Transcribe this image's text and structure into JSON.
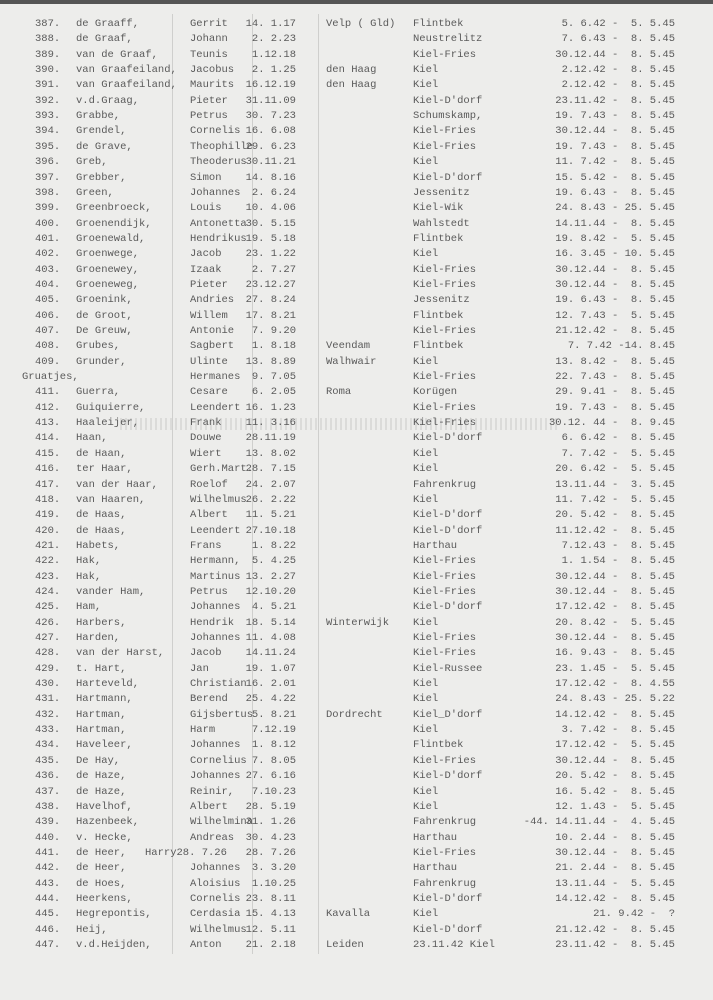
{
  "columns": [
    "no",
    "surname",
    "first_name",
    "birth_date",
    "birth_place",
    "camp",
    "period"
  ],
  "rows": [
    {
      "no": "387.",
      "surname": "de Graaff,",
      "first_name": "Gerrit",
      "birth_date": "14. 1.17",
      "birth_place": "Velp ( Gld)",
      "camp": "Flintbek",
      "period": "5. 6.42 -  5. 5.45"
    },
    {
      "no": "388.",
      "surname": "de Graaf,",
      "first_name": "Johann",
      "birth_date": "2. 2.23",
      "birth_place": "",
      "camp": "Neustrelitz",
      "period": "7. 6.43 -  8. 5.45"
    },
    {
      "no": "389.",
      "surname": "van de Graaf,",
      "first_name": "Teunis",
      "birth_date": "1.12.18",
      "birth_place": "",
      "camp": "Kiel-Fries",
      "period": "30.12.44 -  8. 5.45"
    },
    {
      "no": "390.",
      "surname": "van Graafeiland,",
      "first_name": "Jacobus",
      "birth_date": "2. 1.25",
      "birth_place": "den Haag",
      "camp": "Kiel",
      "period": "2.12.42 -  8. 5.45"
    },
    {
      "no": "391.",
      "surname": "van Graafeiland,",
      "first_name": "Maurits",
      "birth_date": "16.12.19",
      "birth_place": "den Haag",
      "camp": "Kiel",
      "period": "2.12.42 -  8. 5.45"
    },
    {
      "no": "392.",
      "surname": "v.d.Graag,",
      "first_name": "Pieter",
      "birth_date": "31.11.09",
      "birth_place": "",
      "camp": "Kiel-D'dorf",
      "period": "23.11.42 -  8. 5.45"
    },
    {
      "no": "393.",
      "surname": "Grabbe,",
      "first_name": "Petrus",
      "birth_date": "30. 7.23",
      "birth_place": "",
      "camp": "Schumskamp,",
      "period": "19. 7.43 -  8. 5.45"
    },
    {
      "no": "394.",
      "surname": "Grendel,",
      "first_name": "Cornelis",
      "birth_date": "16. 6.08",
      "birth_place": "",
      "camp": "Kiel-Fries",
      "period": "30.12.44 -  8. 5.45"
    },
    {
      "no": "395.",
      "surname": "de Grave,",
      "first_name": "Theophille",
      "birth_date": "29. 6.23",
      "birth_place": "",
      "camp": "Kiel-Fries",
      "period": "19. 7.43 -  8. 5.45"
    },
    {
      "no": "396.",
      "surname": "Greb,",
      "first_name": "Theoderus",
      "birth_date": "30.11.21",
      "birth_place": "",
      "camp": "Kiel",
      "period": "11. 7.42 -  8. 5.45"
    },
    {
      "no": "397.",
      "surname": "Grebber,",
      "first_name": "Simon",
      "birth_date": "14. 8.16",
      "birth_place": "",
      "camp": "Kiel-D'dorf",
      "period": "15. 5.42 -  8. 5.45"
    },
    {
      "no": "398.",
      "surname": "Green,",
      "first_name": "Johannes",
      "birth_date": "2. 6.24",
      "birth_place": "",
      "camp": "Jessenitz",
      "period": "19. 6.43 -  8. 5.45"
    },
    {
      "no": "399.",
      "surname": "Greenbroeck,",
      "first_name": "Louis",
      "birth_date": "10. 4.06",
      "birth_place": "",
      "camp": "Kiel-Wik",
      "period": "24. 8.43 - 25. 5.45"
    },
    {
      "no": "400.",
      "surname": "Groenendijk,",
      "first_name": "Antonetta",
      "birth_date": "30. 5.15",
      "birth_place": "",
      "camp": "Wahlstedt",
      "period": "14.11.44 -  8. 5.45"
    },
    {
      "no": "401.",
      "surname": "Groenewald,",
      "first_name": "Hendrikus",
      "birth_date": "19. 5.18",
      "birth_place": "",
      "camp": "Flintbek",
      "period": "19. 8.42 -  5. 5.45"
    },
    {
      "no": "402.",
      "surname": "Groenwege,",
      "first_name": "Jacob",
      "birth_date": "23. 1.22",
      "birth_place": "",
      "camp": "Kiel",
      "period": "16. 3.45 - 10. 5.45"
    },
    {
      "no": "403.",
      "surname": "Groenewey,",
      "first_name": "Izaak",
      "birth_date": "2. 7.27",
      "birth_place": "",
      "camp": "Kiel-Fries",
      "period": "30.12.44 -  8. 5.45"
    },
    {
      "no": "404.",
      "surname": "Groeneweg,",
      "first_name": "Pieter",
      "birth_date": "23.12.27",
      "birth_place": "",
      "camp": "Kiel-Fries",
      "period": "30.12.44 -  8. 5.45"
    },
    {
      "no": "405.",
      "surname": "Groenink,",
      "first_name": "Andries",
      "birth_date": "27. 8.24",
      "birth_place": "",
      "camp": "Jessenitz",
      "period": "19. 6.43 -  8. 5.45"
    },
    {
      "no": "406.",
      "surname": "de Groot,",
      "first_name": "Willem",
      "birth_date": "17. 8.21",
      "birth_place": "",
      "camp": "Flintbek",
      "period": "12. 7.43 -  5. 5.45"
    },
    {
      "no": "407.",
      "surname": "De Greuw,",
      "first_name": "Antonie",
      "birth_date": "7. 9.20",
      "birth_place": "",
      "camp": "Kiel-Fries",
      "period": "21.12.42 -  8. 5.45"
    },
    {
      "no": "408.",
      "surname": "Grubes,",
      "first_name": "Sagbert",
      "birth_date": "1. 8.18",
      "birth_place": "Veendam",
      "camp": "Flintbek",
      "period": "7. 7.42 -14. 8.45"
    },
    {
      "no": "409.",
      "surname": "Grunder,",
      "first_name": "Ulinte",
      "birth_date": "13. 8.89",
      "birth_place": "Walhwair",
      "camp": "Kiel",
      "period": "13. 8.42 -  8. 5.45"
    },
    {
      "no": "",
      "surname": "Gruatjes,",
      "first_name": "Hermanes",
      "birth_date": "9. 7.05",
      "birth_place": "",
      "camp": "Kiel-Fries",
      "period": "22. 7.43 -  8. 5.45"
    },
    {
      "no": "411.",
      "surname": "Guerra,",
      "first_name": "Cesare",
      "birth_date": "6. 2.05",
      "birth_place": "Roma",
      "camp": "Korügen",
      "period": "29. 9.41 -  8. 5.45"
    },
    {
      "no": "412.",
      "surname": "Guiquierre,",
      "first_name": "Leendert",
      "birth_date": "16. 1.23",
      "birth_place": "",
      "camp": "Kiel-Fries",
      "period": "19. 7.43 -  8. 5.45"
    },
    {
      "no": "413.",
      "surname": "Haaleijer,",
      "first_name": "Frank",
      "birth_date": "11. 3.16",
      "birth_place": "",
      "camp": "Kiel-Fries",
      "period": "30.12. 44 -  8. 9.45"
    },
    {
      "no": "414.",
      "surname": "Haan,",
      "first_name": "Douwe",
      "birth_date": "28.11.19",
      "birth_place": "",
      "camp": "Kiel-D'dorf",
      "period": "6. 6.42 -  8. 5.45"
    },
    {
      "no": "415.",
      "surname": "de Haan,",
      "first_name": "Wiert",
      "birth_date": "13. 8.02",
      "birth_place": "",
      "camp": "Kiel",
      "period": "7. 7.42 -  5. 5.45"
    },
    {
      "no": "416.",
      "surname": "ter Haar,",
      "first_name": "Gerh.Mart.",
      "birth_date": "28. 7.15",
      "birth_place": "",
      "camp": "Kiel",
      "period": "20. 6.42 -  5. 5.45"
    },
    {
      "no": "417.",
      "surname": "van der Haar,",
      "first_name": "Roelof",
      "birth_date": "24. 2.07",
      "birth_place": "",
      "camp": "Fahrenkrug",
      "period": "13.11.44 -  3. 5.45"
    },
    {
      "no": "418.",
      "surname": "van Haaren,",
      "first_name": "Wilhelmus",
      "birth_date": "26. 2.22",
      "birth_place": "",
      "camp": "Kiel",
      "period": "11. 7.42 -  5. 5.45"
    },
    {
      "no": "419.",
      "surname": "de Haas,",
      "first_name": "Albert",
      "birth_date": "11. 5.21",
      "birth_place": "",
      "camp": "Kiel-D'dorf",
      "period": "20. 5.42 -  8. 5.45"
    },
    {
      "no": "420.",
      "surname": "de Haas,",
      "first_name": "Leendert",
      "birth_date": "27.10.18",
      "birth_place": "",
      "camp": "Kiel-D'dorf",
      "period": "11.12.42 -  8. 5.45"
    },
    {
      "no": "421.",
      "surname": "Habets,",
      "first_name": "Frans",
      "birth_date": "1. 8.22",
      "birth_place": "",
      "camp": "Harthau",
      "period": "7.12.43 -  8. 5.45"
    },
    {
      "no": "422.",
      "surname": "Hak,",
      "first_name": "Hermann,",
      "birth_date": "5. 4.25",
      "birth_place": "",
      "camp": "Kiel-Fries",
      "period": "1. 1.54 -  8. 5.45"
    },
    {
      "no": "423.",
      "surname": "Hak,",
      "first_name": "Martinus",
      "birth_date": "13. 2.27",
      "birth_place": "",
      "camp": "Kiel-Fries",
      "period": "30.12.44 -  8. 5.45"
    },
    {
      "no": "424.",
      "surname": "vander Ham,",
      "first_name": "Petrus",
      "birth_date": "12.10.20",
      "birth_place": "",
      "camp": "Kiel-Fries",
      "period": "30.12.44 -  8. 5.45"
    },
    {
      "no": "425.",
      "surname": "Ham,",
      "first_name": "Johannes",
      "birth_date": "4. 5.21",
      "birth_place": "",
      "camp": "Kiel-D'dorf",
      "period": "17.12.42 -  8. 5.45"
    },
    {
      "no": "426.",
      "surname": "Harbers,",
      "first_name": "Hendrik",
      "birth_date": "18. 5.14",
      "birth_place": "Winterwijk",
      "camp": "Kiel",
      "period": "20. 8.42 -  5. 5.45"
    },
    {
      "no": "427.",
      "surname": "Harden,",
      "first_name": "Johannes",
      "birth_date": "11. 4.08",
      "birth_place": "",
      "camp": "Kiel-Fries",
      "period": "30.12.44 -  8. 5.45"
    },
    {
      "no": "428.",
      "surname": "van der Harst,",
      "first_name": "Jacob",
      "birth_date": "14.11.24",
      "birth_place": "",
      "camp": "Kiel-Fries",
      "period": "16. 9.43 -  8. 5.45"
    },
    {
      "no": "429.",
      "surname": "t. Hart,",
      "first_name": "Jan",
      "birth_date": "19. 1.07",
      "birth_place": "",
      "camp": "Kiel-Russee",
      "period": "23. 1.45 -  5. 5.45"
    },
    {
      "no": "430.",
      "surname": "Harteveld,",
      "first_name": "Christian",
      "birth_date": "16. 2.01",
      "birth_place": "",
      "camp": "Kiel",
      "period": "17.12.42 -  8. 4.55"
    },
    {
      "no": "431.",
      "surname": "Hartmann,",
      "first_name": "Berend",
      "birth_date": "25. 4.22",
      "birth_place": "",
      "camp": "Kiel",
      "period": "24. 8.43 - 25. 5.22"
    },
    {
      "no": "432.",
      "surname": "Hartman,",
      "first_name": "Gijsbertus",
      "birth_date": "5. 8.21",
      "birth_place": "Dordrecht",
      "camp": "Kiel_D'dorf",
      "period": "14.12.42 -  8. 5.45"
    },
    {
      "no": "433.",
      "surname": "Hartman,",
      "first_name": "Harm",
      "birth_date": "7.12.19",
      "birth_place": "",
      "camp": "Kiel",
      "period": "3. 7.42 -  8. 5.45"
    },
    {
      "no": "434.",
      "surname": "Haveleer,",
      "first_name": "Johannes",
      "birth_date": "1. 8.12",
      "birth_place": "",
      "camp": "Flintbek",
      "period": "17.12.42 -  5. 5.45"
    },
    {
      "no": "435.",
      "surname": "De Hay,",
      "first_name": "Cornelius",
      "birth_date": "7. 8.05",
      "birth_place": "",
      "camp": "Kiel-Fries",
      "period": "30.12.44 -  8. 5.45"
    },
    {
      "no": "436.",
      "surname": "de Haze,",
      "first_name": "Johannes",
      "birth_date": "27. 6.16",
      "birth_place": "",
      "camp": "Kiel-D'dorf",
      "period": "20. 5.42 -  8. 5.45"
    },
    {
      "no": "437.",
      "surname": "de Haze,",
      "first_name": "Reinir,",
      "birth_date": "7.10.23",
      "birth_place": "",
      "camp": "Kiel",
      "period": "16. 5.42 -  8. 5.45"
    },
    {
      "no": "438.",
      "surname": "Havelhof,",
      "first_name": "Albert",
      "birth_date": "28. 5.19",
      "birth_place": "",
      "camp": "Kiel",
      "period": "12. 1.43 -  5. 5.45"
    },
    {
      "no": "439.",
      "surname": "Hazenbeek,",
      "first_name": "Wilhelmina",
      "birth_date": "31. 1.26",
      "birth_place": "",
      "camp": "Fahrenkrug",
      "period": "-44. 14.11.44 -  4. 5.45"
    },
    {
      "no": "440.",
      "surname": "v. Hecke,",
      "first_name": "Andreas",
      "birth_date": "30. 4.23",
      "birth_place": "",
      "camp": "Harthau",
      "period": "10. 2.44 -  8. 5.45"
    },
    {
      "no": "441.",
      "surname": "de Heer,",
      "first_name": "Harry28. 7.26",
      "birth_date": "28. 7.26",
      "birth_place": "",
      "camp": "Kiel-Fries",
      "period": "30.12.44 -  8. 5.45"
    },
    {
      "no": "442.",
      "surname": "de Heer,",
      "first_name": "Johannes",
      "birth_date": "3. 3.20",
      "birth_place": "",
      "camp": "Harthau",
      "period": "21. 2.44 -  8. 5.45"
    },
    {
      "no": "443.",
      "surname": "de Hoes,",
      "first_name": "Aloisius",
      "birth_date": "1.10.25",
      "birth_place": "",
      "camp": "Fahrenkrug",
      "period": "13.11.44 -  5. 5.45"
    },
    {
      "no": "444.",
      "surname": "Heerkens,",
      "first_name": "Cornelis",
      "birth_date": "23. 8.11",
      "birth_place": "",
      "camp": "Kiel-D'dorf",
      "period": "14.12.42 -  8. 5.45"
    },
    {
      "no": "445.",
      "surname": "Hegrepontis,",
      "first_name": "Cerdasia",
      "birth_date": "15. 4.13",
      "birth_place": "Kavalla",
      "camp": "Kiel",
      "period": "21. 9.42 -  ?"
    },
    {
      "no": "446.",
      "surname": "Heij,",
      "first_name": "Wilhelmus",
      "birth_date": "12. 5.11",
      "birth_place": "",
      "camp": "Kiel-D'dorf",
      "period": "21.12.42 -  8. 5.45"
    },
    {
      "no": "447.",
      "surname": "v.d.Heijden,",
      "first_name": "Anton",
      "birth_date": "21. 2.18",
      "birth_place": "Leiden",
      "camp": "23.11.42 Kiel",
      "period": "23.11.42 -  8. 5.45"
    }
  ]
}
